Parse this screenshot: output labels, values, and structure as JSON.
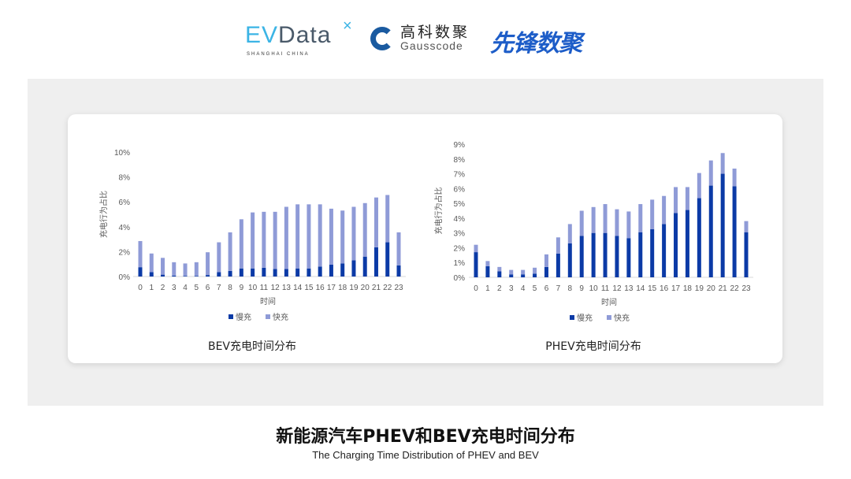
{
  "logos": {
    "evdata": {
      "name": "EVData",
      "sub": "SHANGHAI CHINA"
    },
    "gausscode": {
      "cn": "高科数聚",
      "en": "Gausscode"
    },
    "xianfeng": {
      "name": "先锋数聚"
    }
  },
  "colors": {
    "slow": "#0b3aa6",
    "fast": "#8f9bd7",
    "panel": "#efefef"
  },
  "title_cn": "新能源汽车PHEV和BEV充电时间分布",
  "title_en": "The Charging Time Distribution of PHEV and BEV",
  "chart_data": [
    {
      "type": "bar",
      "stacked": true,
      "title": "BEV充电时间分布",
      "xlabel": "时间",
      "ylabel": "充电行为占比",
      "ylim": [
        0,
        10
      ],
      "yticks": [
        "0%",
        "2%",
        "4%",
        "6%",
        "8%",
        "10%"
      ],
      "ytick_values": [
        0,
        2,
        4,
        6,
        8,
        10
      ],
      "legend": "bottom",
      "categories": [
        "0",
        "1",
        "2",
        "3",
        "4",
        "5",
        "6",
        "7",
        "8",
        "9",
        "10",
        "11",
        "12",
        "13",
        "14",
        "15",
        "16",
        "17",
        "18",
        "19",
        "20",
        "21",
        "22",
        "23"
      ],
      "series": [
        {
          "name": "慢充",
          "values": [
            0.75,
            0.35,
            0.15,
            0.08,
            0.05,
            0.05,
            0.12,
            0.35,
            0.45,
            0.65,
            0.65,
            0.7,
            0.6,
            0.6,
            0.65,
            0.65,
            0.8,
            0.95,
            1.05,
            1.3,
            1.6,
            2.35,
            2.75,
            0.9
          ]
        },
        {
          "name": "快充",
          "values": [
            2.1,
            1.5,
            1.35,
            1.07,
            1.0,
            1.1,
            1.83,
            2.4,
            3.1,
            3.95,
            4.5,
            4.5,
            4.6,
            5.0,
            5.15,
            5.15,
            5.0,
            4.5,
            4.25,
            4.3,
            4.3,
            4.0,
            3.8,
            2.65
          ]
        }
      ]
    },
    {
      "type": "bar",
      "stacked": true,
      "title": "PHEV充电时间分布",
      "xlabel": "时间",
      "ylabel": "充电行为占比",
      "ylim": [
        0,
        9
      ],
      "yticks": [
        "0%",
        "1%",
        "2%",
        "3%",
        "4%",
        "5%",
        "6%",
        "7%",
        "8%",
        "9%"
      ],
      "ytick_values": [
        0,
        1,
        2,
        3,
        4,
        5,
        6,
        7,
        8,
        9
      ],
      "legend": "bottom",
      "categories": [
        "0",
        "1",
        "2",
        "3",
        "4",
        "5",
        "6",
        "7",
        "8",
        "9",
        "10",
        "11",
        "12",
        "13",
        "14",
        "15",
        "16",
        "17",
        "18",
        "19",
        "20",
        "21",
        "22",
        "23"
      ],
      "series": [
        {
          "name": "慢充",
          "values": [
            1.7,
            0.75,
            0.4,
            0.2,
            0.2,
            0.25,
            0.7,
            1.6,
            2.3,
            2.8,
            3.0,
            3.0,
            2.8,
            2.65,
            3.05,
            3.25,
            3.6,
            4.35,
            4.55,
            5.35,
            6.2,
            7.0,
            6.15,
            3.05
          ]
        },
        {
          "name": "快充",
          "values": [
            0.5,
            0.35,
            0.3,
            0.3,
            0.3,
            0.4,
            0.85,
            1.1,
            1.3,
            1.7,
            1.75,
            1.95,
            1.8,
            1.8,
            1.9,
            2.0,
            1.9,
            1.75,
            1.55,
            1.7,
            1.7,
            1.4,
            1.2,
            0.75
          ]
        }
      ]
    }
  ]
}
